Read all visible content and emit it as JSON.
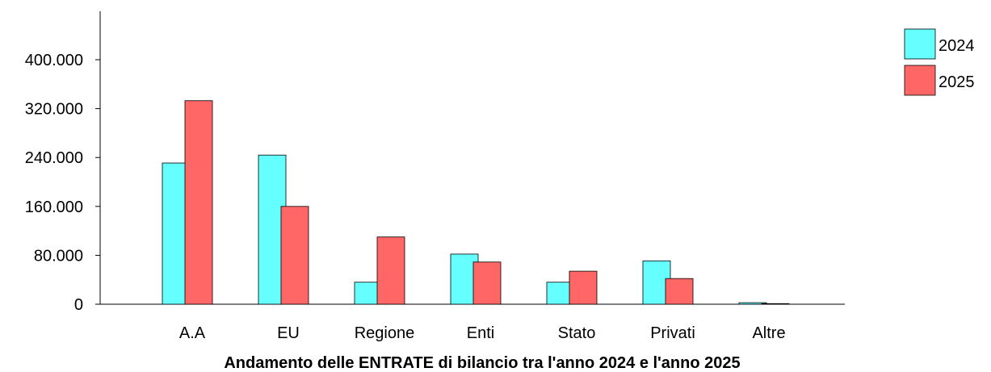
{
  "chart_data": {
    "type": "bar",
    "title": "Andamento delle ENTRATE di bilancio tra l'anno 2024 e l'anno 2025",
    "xlabel": "",
    "ylabel": "",
    "categories": [
      "A.A",
      "EU",
      "Regione",
      "Enti",
      "Stato",
      "Privati",
      "Altre"
    ],
    "series": [
      {
        "name": "2024",
        "color": "#66ffff",
        "values": [
          231000,
          244000,
          36000,
          82000,
          36000,
          71000,
          2500
        ]
      },
      {
        "name": "2025",
        "color": "#ff6666",
        "values": [
          333000,
          160000,
          110000,
          69000,
          54000,
          42000,
          1000
        ]
      }
    ],
    "yticks": [
      0,
      80000,
      160000,
      240000,
      320000,
      400000
    ],
    "ytick_labels": [
      "0",
      "80.000",
      "160.000",
      "240.000",
      "320.000",
      "400.000"
    ],
    "ylim": [
      0,
      480000
    ],
    "grid": false,
    "legend_position": "top-right"
  }
}
